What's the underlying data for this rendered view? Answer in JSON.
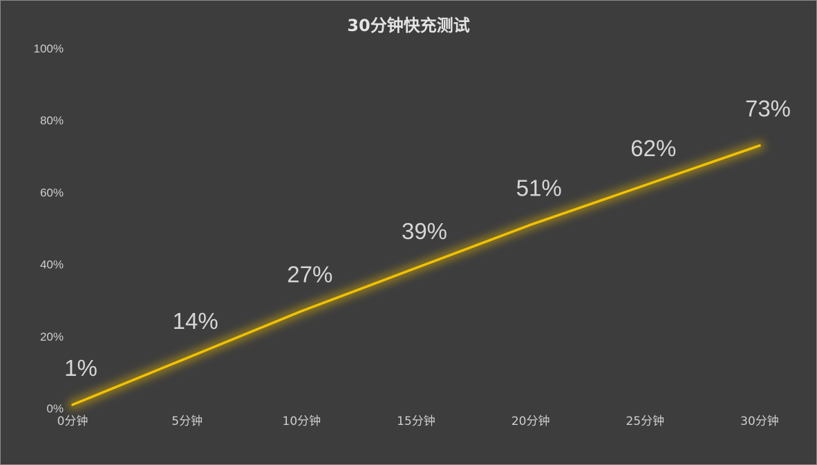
{
  "chart_data": {
    "type": "line",
    "title": "30分钟快充测试",
    "xlabel": "",
    "ylabel": "",
    "categories": [
      "0分钟",
      "5分钟",
      "10分钟",
      "15分钟",
      "20分钟",
      "25分钟",
      "30分钟"
    ],
    "series": [
      {
        "values": [
          1,
          14,
          27,
          39,
          51,
          62,
          73
        ],
        "data_labels": [
          "1%",
          "14%",
          "27%",
          "39%",
          "51%",
          "62%",
          "73%"
        ],
        "color": "#f2c200"
      }
    ],
    "ylim": [
      0,
      100
    ],
    "yticks": [
      "0%",
      "20%",
      "40%",
      "60%",
      "80%",
      "100%"
    ],
    "grid": false,
    "legend": "none",
    "background": "#3d3d3d",
    "text_color": "#cfcfcf"
  }
}
